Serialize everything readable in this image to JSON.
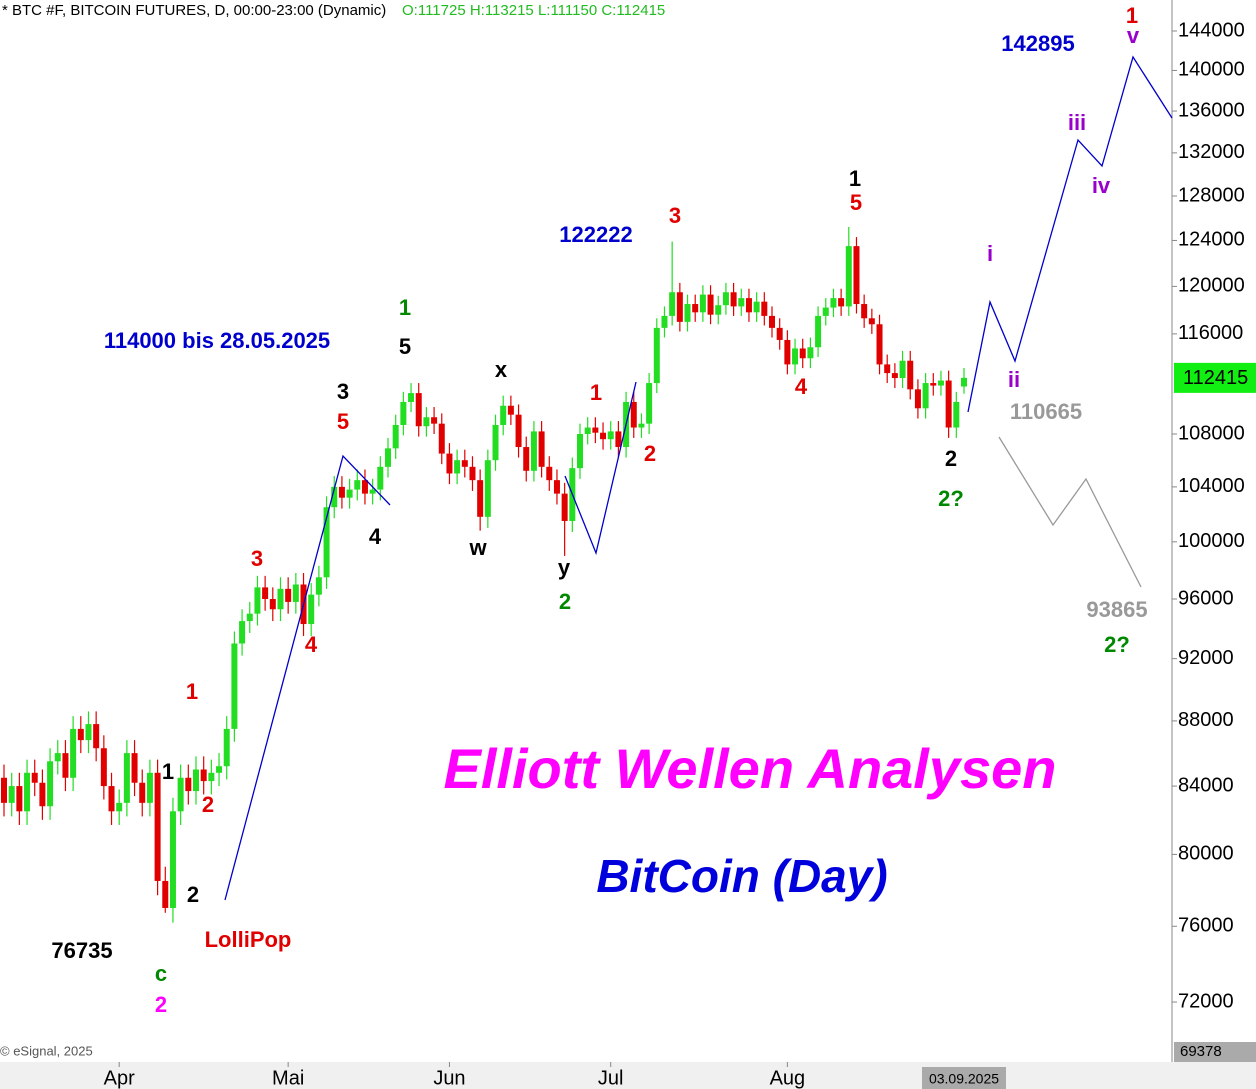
{
  "chart_data": {
    "type": "candlestick",
    "header": "* BTC #F, BITCOIN FUTURES, D, 00:00-23:00 (Dynamic)",
    "header_ohlc": "O:111725 H:113215 L:111150 C:112415",
    "title": "Elliott Wellen Analysen",
    "subtitle": "BitCoin (Day)",
    "source": "© eSignal, 2025",
    "date_label": "03.09.2025",
    "up_color": "#22dd22",
    "down_color": "#e00000",
    "log_scale": true,
    "ylim": [
      69378,
      147220
    ],
    "yticks": [
      72000,
      76000,
      80000,
      84000,
      88000,
      92000,
      96000,
      100000,
      104000,
      108000,
      116000,
      120000,
      124000,
      128000,
      132000,
      136000,
      140000,
      144000
    ],
    "xticks": [
      {
        "value": 15,
        "label": "Apr"
      },
      {
        "value": 37,
        "label": "Mai"
      },
      {
        "value": 58,
        "label": "Jun"
      },
      {
        "value": 79,
        "label": "Jul"
      },
      {
        "value": 102,
        "label": "Aug"
      }
    ],
    "open": [
      84500,
      83000,
      84000,
      82500,
      84800,
      84200,
      82800,
      85500,
      86000,
      84500,
      87500,
      86800,
      87800,
      86300,
      84000,
      82500,
      83000,
      86000,
      84200,
      83000,
      84800,
      78500,
      77000,
      82500,
      84500,
      83700,
      85000,
      84300,
      84800,
      85200,
      87500,
      93000,
      94500,
      95000,
      96800,
      96000,
      95300,
      96700,
      95800,
      97000,
      94300,
      96300,
      97500,
      102500,
      104000,
      103200,
      103800,
      104500,
      103500,
      103800,
      105500,
      106900,
      108700,
      110500,
      111200,
      108600,
      109300,
      108800,
      106500,
      105000,
      106000,
      105500,
      104500,
      101800,
      106000,
      108700,
      110200,
      109500,
      107000,
      105200,
      108200,
      105500,
      104500,
      103500,
      101500,
      105400,
      108000,
      108500,
      108100,
      107600,
      108200,
      107000,
      110500,
      108500,
      108800,
      112000,
      116500,
      117500,
      119500,
      117000,
      118500,
      117800,
      119300,
      117600,
      118400,
      119500,
      118300,
      119000,
      117800,
      118700,
      117500,
      116500,
      115500,
      113500,
      114800,
      114000,
      114900,
      117500,
      118200,
      119000,
      118300,
      123500,
      118500,
      117300,
      116800,
      113500,
      112800,
      112400,
      113800,
      111500,
      110000,
      112000,
      111800,
      112200,
      108500,
      111725
    ],
    "high": [
      85300,
      84800,
      84800,
      85600,
      85600,
      85000,
      86300,
      86800,
      86800,
      88300,
      88300,
      88600,
      88600,
      87100,
      84800,
      83800,
      86800,
      86800,
      85000,
      85600,
      85600,
      79300,
      83300,
      85300,
      85300,
      85800,
      85800,
      85600,
      86000,
      88300,
      93800,
      95300,
      95800,
      97600,
      97600,
      96800,
      97500,
      97500,
      97800,
      97800,
      97100,
      98300,
      103300,
      104800,
      104800,
      104600,
      105300,
      105300,
      104600,
      106300,
      107700,
      109500,
      111300,
      112000,
      112000,
      110100,
      110100,
      109600,
      107300,
      106800,
      106800,
      106300,
      105300,
      106800,
      109500,
      111000,
      111000,
      110300,
      107800,
      109000,
      109000,
      106300,
      105300,
      104300,
      106200,
      108800,
      109300,
      109300,
      108900,
      109000,
      109000,
      111300,
      111300,
      109600,
      112800,
      117300,
      118300,
      123900,
      120300,
      119300,
      119300,
      120100,
      120100,
      119200,
      120300,
      120300,
      119800,
      119800,
      119500,
      119500,
      118300,
      117300,
      116300,
      115600,
      115600,
      115700,
      118300,
      119000,
      119800,
      119800,
      125200,
      124300,
      119300,
      118100,
      117600,
      114300,
      113600,
      114600,
      114600,
      112300,
      112800,
      112800,
      113000,
      113000,
      111300,
      113215
    ],
    "low": [
      82200,
      82200,
      81700,
      81700,
      83400,
      82000,
      82000,
      84700,
      83700,
      83700,
      86000,
      86000,
      85500,
      83200,
      81700,
      81700,
      82200,
      83400,
      82200,
      82200,
      77700,
      76735,
      76200,
      81700,
      82900,
      82900,
      83500,
      83500,
      84000,
      84400,
      86700,
      92200,
      93700,
      94200,
      95200,
      94500,
      94500,
      95000,
      95000,
      93500,
      93500,
      95500,
      96700,
      101700,
      102400,
      102400,
      103000,
      102700,
      102700,
      103000,
      104700,
      106100,
      107900,
      109700,
      107800,
      107800,
      108000,
      105700,
      104200,
      104200,
      104700,
      103700,
      100800,
      101000,
      105200,
      107900,
      108700,
      106200,
      104400,
      104400,
      104700,
      103700,
      102700,
      99000,
      100700,
      104600,
      107200,
      107300,
      106800,
      106800,
      106200,
      106200,
      107700,
      107700,
      108000,
      111200,
      115700,
      116700,
      116200,
      116200,
      117000,
      117000,
      116800,
      116800,
      117600,
      117500,
      117500,
      117000,
      117000,
      116700,
      115700,
      114700,
      112700,
      112700,
      113200,
      113200,
      114100,
      116700,
      117400,
      117500,
      117500,
      117700,
      116500,
      116000,
      112700,
      112000,
      111600,
      111600,
      110700,
      109200,
      109200,
      111000,
      111000,
      107700,
      107700,
      111150
    ],
    "close": [
      83000,
      84000,
      82500,
      84800,
      84200,
      82800,
      85500,
      86000,
      84500,
      87500,
      86800,
      87800,
      86300,
      84000,
      82500,
      83000,
      86000,
      84200,
      83000,
      84800,
      78500,
      77000,
      82500,
      84500,
      83700,
      85000,
      84300,
      84800,
      85200,
      87500,
      93000,
      94500,
      95000,
      96800,
      96000,
      95300,
      96700,
      95800,
      97000,
      94300,
      96300,
      97500,
      102500,
      104000,
      103200,
      103800,
      104500,
      103500,
      103800,
      105500,
      106900,
      108700,
      110500,
      111200,
      108600,
      109300,
      108800,
      106500,
      105000,
      106000,
      105500,
      104500,
      101800,
      106000,
      108700,
      110200,
      109500,
      107000,
      105200,
      108200,
      105500,
      104500,
      103500,
      101500,
      105400,
      108000,
      108500,
      108100,
      107600,
      108200,
      107000,
      110500,
      108500,
      108800,
      112000,
      116500,
      117500,
      119500,
      117000,
      118500,
      117800,
      119300,
      117600,
      118400,
      119500,
      118300,
      119000,
      117800,
      118700,
      117500,
      116500,
      115500,
      113500,
      114800,
      114000,
      114900,
      117500,
      118200,
      119000,
      118300,
      123500,
      118500,
      117300,
      116800,
      113500,
      112800,
      112400,
      113800,
      111500,
      110000,
      112000,
      111800,
      112200,
      108500,
      110500,
      112415
    ],
    "annotations": [
      "142895",
      "1",
      "v",
      "iii",
      "iv",
      "i",
      "ii",
      "110665",
      "93865",
      "2?",
      "2",
      "2?",
      "1",
      "5",
      "3",
      "122222",
      "4",
      "1",
      "2",
      "x",
      "w",
      "y",
      "2",
      "1",
      "5",
      "114000 bis 28.05.2025",
      "3",
      "5",
      "4",
      "3",
      "4",
      "1",
      "1",
      "2",
      "2",
      "LolliPop",
      "76735",
      "c",
      "2"
    ]
  }
}
